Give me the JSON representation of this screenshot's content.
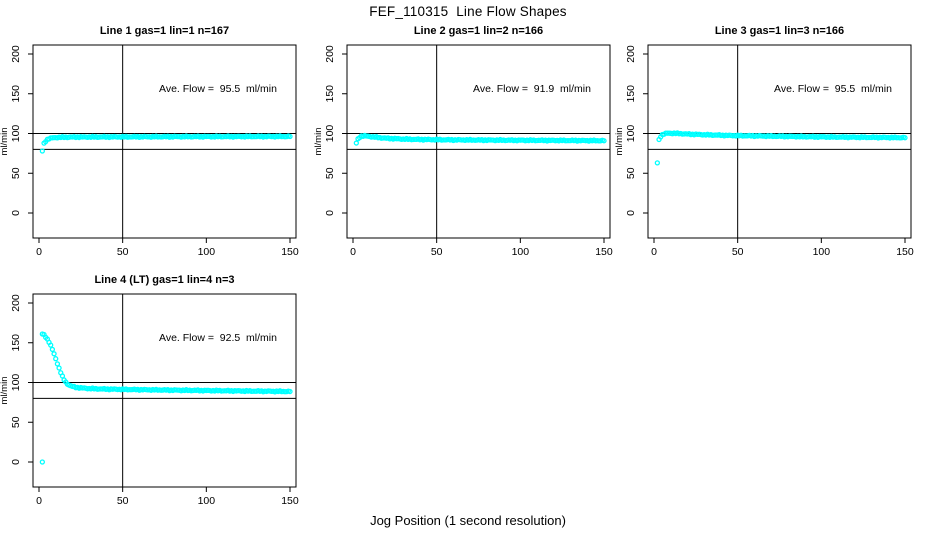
{
  "title": "FEF_110315  Line Flow Shapes",
  "xlabel": "Jog Position (1 second resolution)",
  "colors": {
    "marker": "#00FFFF",
    "axis": "#000000",
    "background": "#FFFFFF"
  },
  "chart_data": [
    {
      "type": "scatter",
      "title": "Line 1 gas=1 lin=1 n=167",
      "annotation": "Ave. Flow =  95.5  ml/min",
      "ave_flow_ml_min": 95.5,
      "n_points": 167,
      "ylabel": "ml/min",
      "x_ticks": [
        0,
        50,
        100,
        150
      ],
      "y_ticks": [
        0,
        50,
        100,
        150,
        200
      ],
      "ref_lines_y": [
        100,
        80
      ],
      "ref_line_x": 50,
      "outliers": [
        [
          2,
          78
        ]
      ],
      "curve": [
        [
          3,
          87.5
        ],
        [
          4,
          90.5
        ],
        [
          5,
          92.5
        ],
        [
          6,
          93.5
        ],
        [
          8,
          94.5
        ],
        [
          12,
          95.2
        ],
        [
          20,
          95.5
        ],
        [
          40,
          95.7
        ],
        [
          80,
          96.0
        ],
        [
          120,
          96.2
        ],
        [
          150,
          96.3
        ]
      ]
    },
    {
      "type": "scatter",
      "title": "Line 2 gas=1 lin=2 n=166",
      "annotation": "Ave. Flow =  91.9  ml/min",
      "ave_flow_ml_min": 91.9,
      "n_points": 166,
      "ylabel": "ml/min",
      "x_ticks": [
        0,
        50,
        100,
        150
      ],
      "y_ticks": [
        0,
        50,
        100,
        150,
        200
      ],
      "ref_lines_y": [
        100,
        80
      ],
      "ref_line_x": 50,
      "outliers": [
        [
          2,
          88
        ]
      ],
      "curve": [
        [
          3,
          93
        ],
        [
          4,
          95.5
        ],
        [
          5,
          96.8
        ],
        [
          7,
          97
        ],
        [
          10,
          96.3
        ],
        [
          15,
          95
        ],
        [
          20,
          94
        ],
        [
          30,
          93
        ],
        [
          40,
          92.5
        ],
        [
          60,
          92
        ],
        [
          90,
          91.6
        ],
        [
          120,
          91.3
        ],
        [
          150,
          91
        ]
      ]
    },
    {
      "type": "scatter",
      "title": "Line 3 gas=1 lin=3 n=166",
      "annotation": "Ave. Flow =  95.5  ml/min",
      "ave_flow_ml_min": 95.5,
      "n_points": 166,
      "ylabel": "ml/min",
      "x_ticks": [
        0,
        50,
        100,
        150
      ],
      "y_ticks": [
        0,
        50,
        100,
        150,
        200
      ],
      "ref_lines_y": [
        100,
        80
      ],
      "ref_line_x": 50,
      "outliers": [
        [
          2,
          63
        ]
      ],
      "curve": [
        [
          3,
          92
        ],
        [
          4,
          96.5
        ],
        [
          5,
          98.5
        ],
        [
          6,
          99.5
        ],
        [
          8,
          100.3
        ],
        [
          12,
          100.3
        ],
        [
          20,
          99.3
        ],
        [
          30,
          98.5
        ],
        [
          45,
          97.5
        ],
        [
          60,
          97
        ],
        [
          90,
          96
        ],
        [
          120,
          95.3
        ],
        [
          150,
          94.8
        ]
      ]
    },
    {
      "type": "scatter",
      "title": "Line 4 (LT) gas=1 lin=4 n=3",
      "annotation": "Ave. Flow =  92.5  ml/min",
      "ave_flow_ml_min": 92.5,
      "n_points": 3,
      "ylabel": "ml/min",
      "x_ticks": [
        0,
        50,
        100,
        150
      ],
      "y_ticks": [
        0,
        50,
        100,
        150,
        200
      ],
      "ref_lines_y": [
        100,
        80
      ],
      "ref_line_x": 50,
      "outliers": [
        [
          2,
          0
        ]
      ],
      "curve": [
        [
          2,
          161
        ],
        [
          3,
          160
        ],
        [
          4,
          157.5
        ],
        [
          5,
          154.5
        ],
        [
          6,
          151
        ],
        [
          7,
          146.5
        ],
        [
          8,
          141.5
        ],
        [
          9,
          136
        ],
        [
          10,
          130
        ],
        [
          11,
          124
        ],
        [
          12,
          118
        ],
        [
          13,
          112.5
        ],
        [
          14,
          107.5
        ],
        [
          15,
          103.5
        ],
        [
          16,
          100.5
        ],
        [
          17,
          98.3
        ],
        [
          18,
          96.8
        ],
        [
          19,
          95.7
        ],
        [
          20,
          95
        ],
        [
          22,
          94
        ],
        [
          25,
          93.2
        ],
        [
          30,
          92.4
        ],
        [
          40,
          91.7
        ],
        [
          60,
          91
        ],
        [
          80,
          90.4
        ],
        [
          100,
          89.9
        ],
        [
          120,
          89.4
        ],
        [
          150,
          88.7
        ]
      ]
    }
  ]
}
